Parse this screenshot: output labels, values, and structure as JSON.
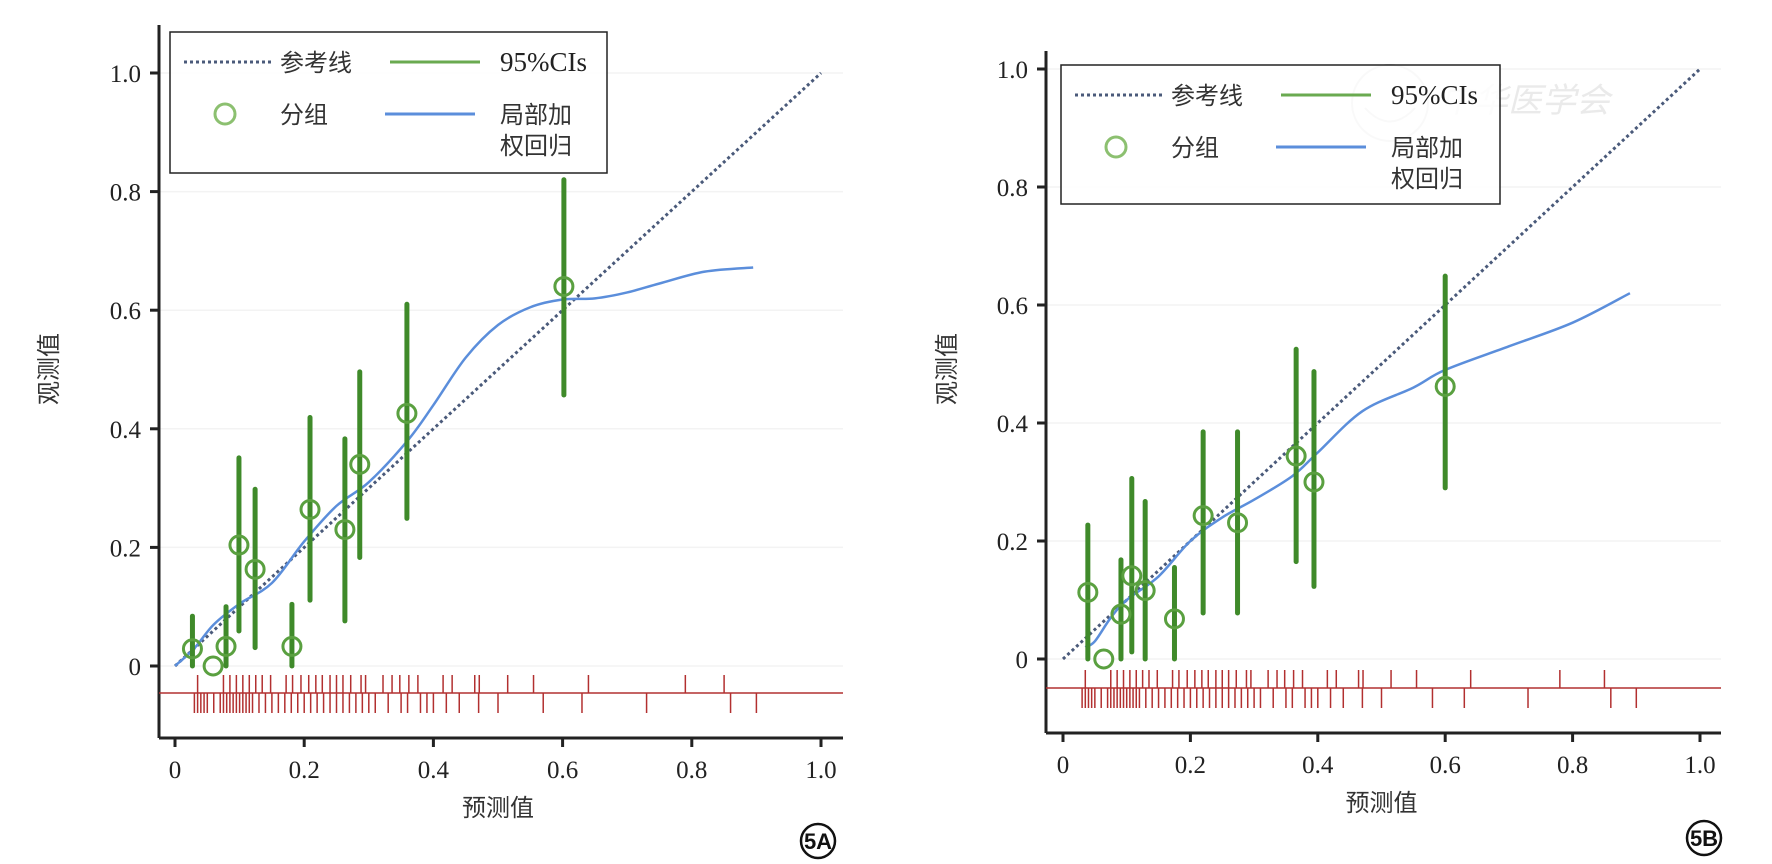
{
  "chart_data": [
    {
      "type": "scatter",
      "panel_label": "5A",
      "xlabel": "预测值",
      "ylabel": "观测值",
      "xlim": [
        0,
        1.0
      ],
      "ylim": [
        0,
        1.0
      ],
      "xticks": [
        "0",
        "0.2",
        "0.4",
        "0.6",
        "0.8",
        "1.0"
      ],
      "yticks": [
        "0",
        "0.2",
        "0.4",
        "0.6",
        "0.8",
        "1.0"
      ],
      "legend": {
        "placement": "top-left",
        "reference": "参考线",
        "ci": "95%CIs",
        "groups": "分组",
        "loess_line1": "局部加",
        "loess_line2": "权回归"
      },
      "groups": [
        {
          "x": 0.027,
          "y": 0.029,
          "lo": 0.0,
          "hi": 0.084
        },
        {
          "x": 0.059,
          "y": 0.0,
          "lo": null,
          "hi": null
        },
        {
          "x": 0.079,
          "y": 0.033,
          "lo": 0.0,
          "hi": 0.1
        },
        {
          "x": 0.099,
          "y": 0.204,
          "lo": 0.059,
          "hi": 0.351
        },
        {
          "x": 0.124,
          "y": 0.163,
          "lo": 0.031,
          "hi": 0.298
        },
        {
          "x": 0.181,
          "y": 0.033,
          "lo": 0.0,
          "hi": 0.104
        },
        {
          "x": 0.209,
          "y": 0.264,
          "lo": 0.111,
          "hi": 0.419
        },
        {
          "x": 0.263,
          "y": 0.23,
          "lo": 0.076,
          "hi": 0.383
        },
        {
          "x": 0.286,
          "y": 0.34,
          "lo": 0.183,
          "hi": 0.496
        },
        {
          "x": 0.359,
          "y": 0.426,
          "lo": 0.249,
          "hi": 0.61
        },
        {
          "x": 0.602,
          "y": 0.64,
          "lo": 0.457,
          "hi": 0.82
        }
      ],
      "loess": [
        [
          0,
          0
        ],
        [
          0.03,
          0.03
        ],
        [
          0.06,
          0.07
        ],
        [
          0.1,
          0.105
        ],
        [
          0.15,
          0.14
        ],
        [
          0.2,
          0.21
        ],
        [
          0.25,
          0.27
        ],
        [
          0.3,
          0.31
        ],
        [
          0.36,
          0.38
        ],
        [
          0.4,
          0.44
        ],
        [
          0.45,
          0.52
        ],
        [
          0.5,
          0.575
        ],
        [
          0.55,
          0.605
        ],
        [
          0.6,
          0.618
        ],
        [
          0.65,
          0.62
        ],
        [
          0.7,
          0.63
        ],
        [
          0.75,
          0.645
        ],
        [
          0.82,
          0.665
        ],
        [
          0.895,
          0.672
        ]
      ],
      "reference": [
        [
          0,
          0
        ],
        [
          1,
          1
        ]
      ],
      "rug_events": [
        0.035,
        0.075,
        0.085,
        0.095,
        0.105,
        0.115,
        0.125,
        0.135,
        0.148,
        0.172,
        0.182,
        0.195,
        0.207,
        0.218,
        0.228,
        0.24,
        0.25,
        0.26,
        0.272,
        0.288,
        0.295,
        0.322,
        0.336,
        0.348,
        0.362,
        0.376,
        0.415,
        0.429,
        0.464,
        0.471,
        0.515,
        0.555,
        0.64,
        0.79,
        0.85
      ],
      "rug_nonevents": [
        0.03,
        0.035,
        0.04,
        0.045,
        0.05,
        0.06,
        0.07,
        0.075,
        0.08,
        0.085,
        0.09,
        0.095,
        0.1,
        0.105,
        0.11,
        0.115,
        0.12,
        0.13,
        0.14,
        0.15,
        0.16,
        0.17,
        0.18,
        0.19,
        0.2,
        0.21,
        0.22,
        0.23,
        0.24,
        0.25,
        0.26,
        0.27,
        0.28,
        0.29,
        0.3,
        0.31,
        0.33,
        0.35,
        0.36,
        0.38,
        0.39,
        0.4,
        0.42,
        0.44,
        0.47,
        0.5,
        0.57,
        0.63,
        0.73,
        0.86,
        0.9
      ]
    },
    {
      "type": "scatter",
      "panel_label": "5B",
      "xlabel": "预测值",
      "ylabel": "观测值",
      "xlim": [
        0,
        1.0
      ],
      "ylim": [
        0,
        1.0
      ],
      "xticks": [
        "0",
        "0.2",
        "0.4",
        "0.6",
        "0.8",
        "1.0"
      ],
      "yticks": [
        "0",
        "0.2",
        "0.4",
        "0.6",
        "0.8",
        "1.0"
      ],
      "legend": {
        "placement": "top-left",
        "reference": "参考线",
        "ci": "95%CIs",
        "groups": "分组",
        "loess_line1": "局部加",
        "loess_line2": "权回归"
      },
      "watermark": "中华医学会",
      "groups": [
        {
          "x": 0.039,
          "y": 0.113,
          "lo": 0.0,
          "hi": 0.227
        },
        {
          "x": 0.064,
          "y": 0.0,
          "lo": null,
          "hi": null
        },
        {
          "x": 0.091,
          "y": 0.076,
          "lo": 0.0,
          "hi": 0.168
        },
        {
          "x": 0.108,
          "y": 0.141,
          "lo": 0.012,
          "hi": 0.306
        },
        {
          "x": 0.129,
          "y": 0.116,
          "lo": 0.0,
          "hi": 0.267
        },
        {
          "x": 0.175,
          "y": 0.068,
          "lo": 0.0,
          "hi": 0.155
        },
        {
          "x": 0.22,
          "y": 0.243,
          "lo": 0.078,
          "hi": 0.385
        },
        {
          "x": 0.274,
          "y": 0.231,
          "lo": 0.078,
          "hi": 0.385
        },
        {
          "x": 0.366,
          "y": 0.344,
          "lo": 0.165,
          "hi": 0.525
        },
        {
          "x": 0.394,
          "y": 0.3,
          "lo": 0.123,
          "hi": 0.487
        },
        {
          "x": 0.6,
          "y": 0.462,
          "lo": 0.29,
          "hi": 0.649
        }
      ],
      "loess": [
        [
          0.035,
          0.02
        ],
        [
          0.05,
          0.03
        ],
        [
          0.075,
          0.07
        ],
        [
          0.1,
          0.1
        ],
        [
          0.15,
          0.14
        ],
        [
          0.2,
          0.2
        ],
        [
          0.25,
          0.24
        ],
        [
          0.3,
          0.27
        ],
        [
          0.36,
          0.31
        ],
        [
          0.4,
          0.35
        ],
        [
          0.47,
          0.42
        ],
        [
          0.55,
          0.46
        ],
        [
          0.6,
          0.49
        ],
        [
          0.7,
          0.53
        ],
        [
          0.8,
          0.57
        ],
        [
          0.89,
          0.62
        ]
      ],
      "reference": [
        [
          0,
          0
        ],
        [
          1,
          1
        ]
      ],
      "rug_events": [
        0.035,
        0.075,
        0.085,
        0.095,
        0.105,
        0.115,
        0.125,
        0.135,
        0.148,
        0.172,
        0.182,
        0.195,
        0.207,
        0.218,
        0.228,
        0.24,
        0.25,
        0.26,
        0.272,
        0.288,
        0.295,
        0.322,
        0.336,
        0.348,
        0.362,
        0.376,
        0.415,
        0.429,
        0.464,
        0.471,
        0.515,
        0.555,
        0.64,
        0.78,
        0.85
      ],
      "rug_nonevents": [
        0.03,
        0.035,
        0.04,
        0.045,
        0.05,
        0.06,
        0.07,
        0.075,
        0.08,
        0.085,
        0.09,
        0.095,
        0.1,
        0.105,
        0.11,
        0.115,
        0.12,
        0.13,
        0.14,
        0.15,
        0.16,
        0.17,
        0.18,
        0.19,
        0.2,
        0.21,
        0.22,
        0.23,
        0.24,
        0.25,
        0.26,
        0.27,
        0.28,
        0.29,
        0.3,
        0.31,
        0.33,
        0.35,
        0.36,
        0.38,
        0.39,
        0.4,
        0.42,
        0.44,
        0.47,
        0.5,
        0.58,
        0.63,
        0.73,
        0.86,
        0.9
      ]
    }
  ],
  "colors": {
    "reference": "#4a5a7a",
    "ci": "#3f8a2a",
    "group": "#5aa040",
    "loess": "#5b8edb",
    "rug": "#b23030",
    "axis": "#222222"
  }
}
